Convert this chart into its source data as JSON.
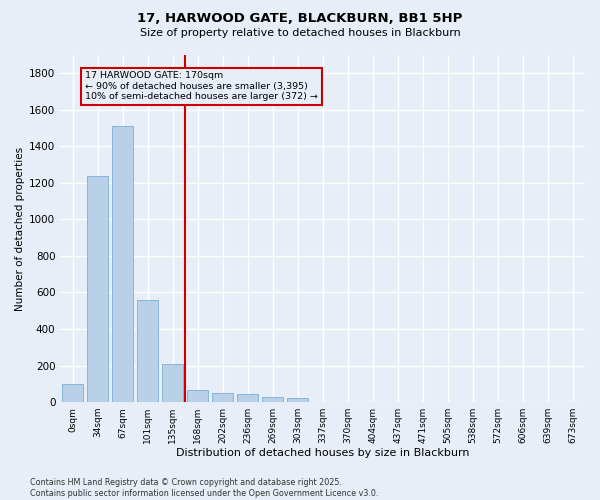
{
  "title": "17, HARWOOD GATE, BLACKBURN, BB1 5HP",
  "subtitle": "Size of property relative to detached houses in Blackburn",
  "xlabel": "Distribution of detached houses by size in Blackburn",
  "ylabel": "Number of detached properties",
  "categories": [
    "0sqm",
    "34sqm",
    "67sqm",
    "101sqm",
    "135sqm",
    "168sqm",
    "202sqm",
    "236sqm",
    "269sqm",
    "303sqm",
    "337sqm",
    "370sqm",
    "404sqm",
    "437sqm",
    "471sqm",
    "505sqm",
    "538sqm",
    "572sqm",
    "606sqm",
    "639sqm",
    "673sqm"
  ],
  "values": [
    100,
    1240,
    1510,
    560,
    210,
    65,
    50,
    42,
    30,
    25,
    0,
    0,
    0,
    0,
    0,
    0,
    0,
    0,
    0,
    0,
    0
  ],
  "bar_color": "#b8d0e8",
  "bar_edgecolor": "#7aafd4",
  "vline_x": 4.5,
  "vline_color": "#cc0000",
  "annotation_line1": "17 HARWOOD GATE: 170sqm",
  "annotation_line2": "← 90% of detached houses are smaller (3,395)",
  "annotation_line3": "10% of semi-detached houses are larger (372) →",
  "annotation_box_color": "#cc0000",
  "ylim": [
    0,
    1900
  ],
  "yticks": [
    0,
    200,
    400,
    600,
    800,
    1000,
    1200,
    1400,
    1600,
    1800
  ],
  "background_color": "#e8eef7",
  "grid_color": "#ffffff",
  "footer": "Contains HM Land Registry data © Crown copyright and database right 2025.\nContains public sector information licensed under the Open Government Licence v3.0."
}
